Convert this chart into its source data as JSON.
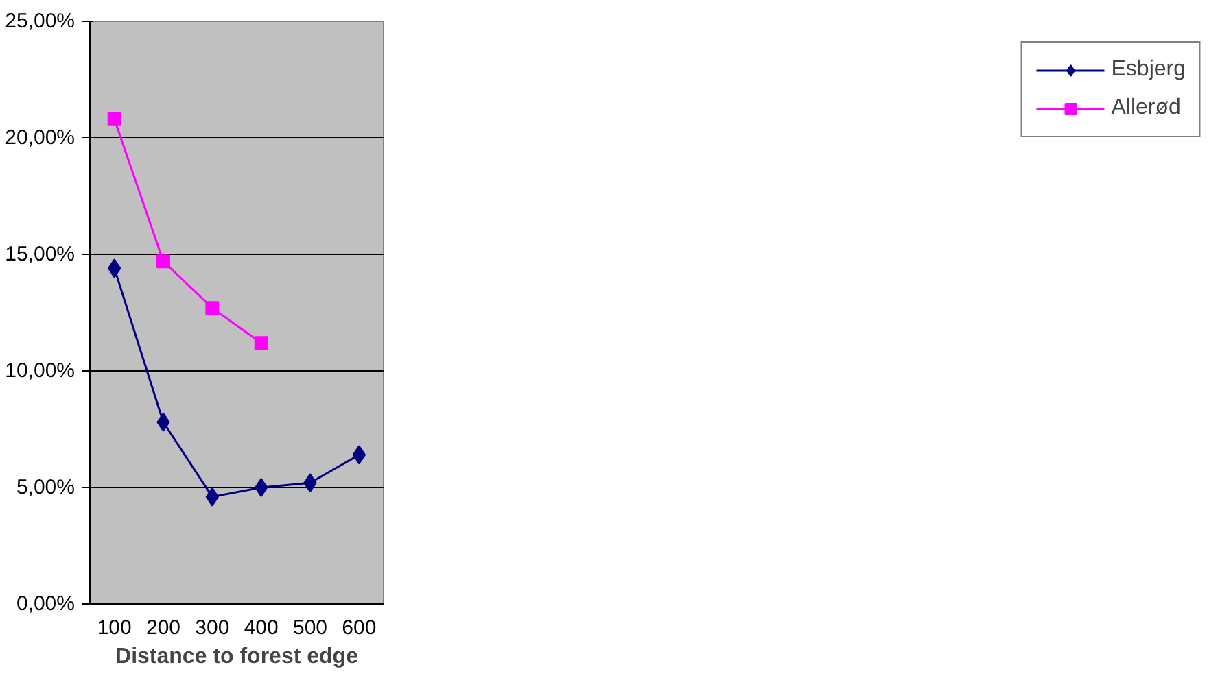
{
  "chart_data": {
    "type": "line",
    "xlabel": "Distance to forest edge",
    "categories": [
      "100",
      "200",
      "300",
      "400",
      "500",
      "600"
    ],
    "series": [
      {
        "name": "Esbjerg",
        "color": "#000080",
        "marker": "diamond",
        "values": [
          0.144,
          0.078,
          0.046,
          0.05,
          0.052,
          0.064
        ]
      },
      {
        "name": "Allerød",
        "color": "#ff00ff",
        "marker": "square",
        "values": [
          0.208,
          0.147,
          0.127,
          0.112,
          null,
          null
        ]
      }
    ],
    "ylim": [
      0,
      0.25
    ],
    "yticks": [
      {
        "value": 0,
        "label": "0,00%"
      },
      {
        "value": 0.05,
        "label": "5,00%"
      },
      {
        "value": 0.1,
        "label": "10,00%"
      },
      {
        "value": 0.15,
        "label": "15,00%"
      },
      {
        "value": 0.2,
        "label": "20,00%"
      },
      {
        "value": 0.25,
        "label": "25,00%"
      }
    ],
    "grid": "y",
    "legend": "right",
    "line_style": "solid"
  }
}
